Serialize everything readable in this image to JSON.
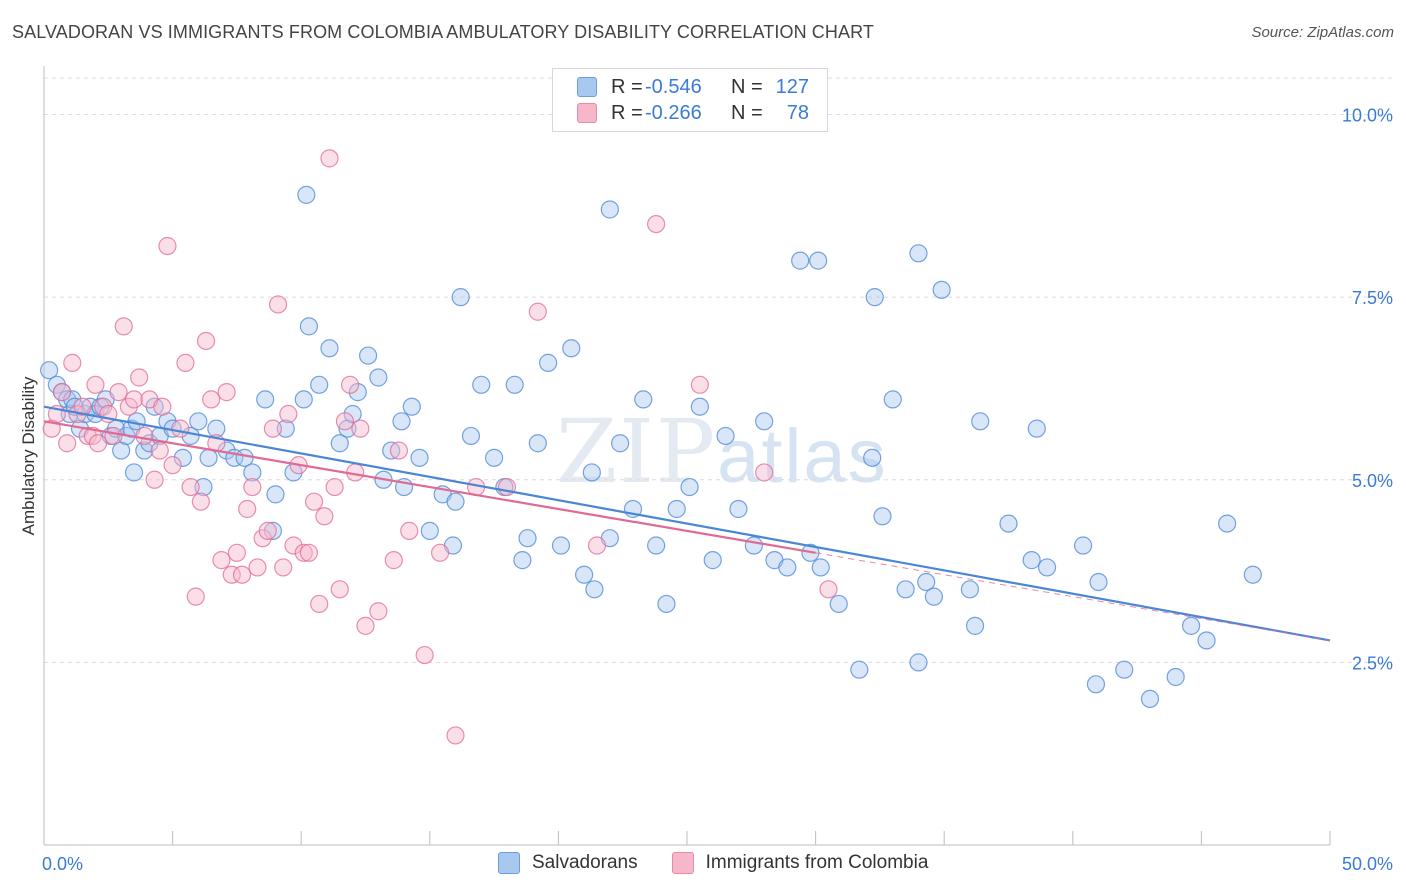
{
  "header": {
    "title": "SALVADORAN VS IMMIGRANTS FROM COLOMBIA AMBULATORY DISABILITY CORRELATION CHART",
    "source": "Source: ZipAtlas.com"
  },
  "watermark": {
    "part1": "ZIP",
    "part2": "atlas"
  },
  "legend": {
    "rows": [
      {
        "r_label": "R =",
        "r_value": "-0.546",
        "n_label": "N =",
        "n_value": "127",
        "color": "#a9c8f0"
      },
      {
        "r_label": "R =",
        "r_value": "-0.266",
        "n_label": "N =",
        "n_value": "78",
        "color": "#f6b7cb"
      }
    ]
  },
  "bottom_legend": {
    "items": [
      {
        "label": "Salvadorans",
        "color": "#a9c8f0"
      },
      {
        "label": "Immigrants from Colombia",
        "color": "#f6b7cb"
      }
    ]
  },
  "chart_data": {
    "type": "scatter",
    "title": "SALVADORAN VS IMMIGRANTS FROM COLOMBIA AMBULATORY DISABILITY CORRELATION CHART",
    "xlabel": "",
    "ylabel": "Ambulatory Disability",
    "xlim": [
      0,
      50
    ],
    "ylim": [
      0,
      10.5
    ],
    "x_tick_labels": [
      "0.0%",
      "50.0%"
    ],
    "y_ticks": [
      2.5,
      5.0,
      7.5,
      10.0
    ],
    "y_tick_labels": [
      "2.5%",
      "5.0%",
      "7.5%",
      "10.0%"
    ],
    "grid": true,
    "legend_position": "top-center",
    "series": [
      {
        "name": "Salvadorans",
        "color": "#4a86d6",
        "fill": "#a9c8f0",
        "trend": {
          "x": [
            0,
            50
          ],
          "y": [
            6.0,
            2.8
          ],
          "dashed_x": []
        },
        "points": [
          [
            0.2,
            6.5
          ],
          [
            0.5,
            6.3
          ],
          [
            0.7,
            6.2
          ],
          [
            0.9,
            6.1
          ],
          [
            1.0,
            5.9
          ],
          [
            1.1,
            6.1
          ],
          [
            1.2,
            6.0
          ],
          [
            1.4,
            5.7
          ],
          [
            1.6,
            5.9
          ],
          [
            1.8,
            6.0
          ],
          [
            2.0,
            5.9
          ],
          [
            2.2,
            6.0
          ],
          [
            2.4,
            6.1
          ],
          [
            2.6,
            5.6
          ],
          [
            2.8,
            5.7
          ],
          [
            3.0,
            5.4
          ],
          [
            3.2,
            5.6
          ],
          [
            3.4,
            5.7
          ],
          [
            3.6,
            5.8
          ],
          [
            3.9,
            5.4
          ],
          [
            4.1,
            5.5
          ],
          [
            4.3,
            6.0
          ],
          [
            4.5,
            5.6
          ],
          [
            4.8,
            5.8
          ],
          [
            5.0,
            5.7
          ],
          [
            5.4,
            5.3
          ],
          [
            5.7,
            5.6
          ],
          [
            6.0,
            5.8
          ],
          [
            6.2,
            4.9
          ],
          [
            6.4,
            5.3
          ],
          [
            6.7,
            5.7
          ],
          [
            7.1,
            5.4
          ],
          [
            7.4,
            5.3
          ],
          [
            7.8,
            5.3
          ],
          [
            8.1,
            5.1
          ],
          [
            8.6,
            6.1
          ],
          [
            8.9,
            4.3
          ],
          [
            9.4,
            5.7
          ],
          [
            9.7,
            5.1
          ],
          [
            10.1,
            6.1
          ],
          [
            10.3,
            7.1
          ],
          [
            10.7,
            6.3
          ],
          [
            11.1,
            6.8
          ],
          [
            11.5,
            5.5
          ],
          [
            11.8,
            5.7
          ],
          [
            12.2,
            6.2
          ],
          [
            12.6,
            6.7
          ],
          [
            13.0,
            6.4
          ],
          [
            13.2,
            5.0
          ],
          [
            13.5,
            5.4
          ],
          [
            13.9,
            5.8
          ],
          [
            14.3,
            6.0
          ],
          [
            14.6,
            5.3
          ],
          [
            15.0,
            4.3
          ],
          [
            15.5,
            4.8
          ],
          [
            15.9,
            4.1
          ],
          [
            16.2,
            7.5
          ],
          [
            16.6,
            5.6
          ],
          [
            17.0,
            6.3
          ],
          [
            17.5,
            5.3
          ],
          [
            17.9,
            4.9
          ],
          [
            18.3,
            6.3
          ],
          [
            18.8,
            4.2
          ],
          [
            19.2,
            5.5
          ],
          [
            19.6,
            6.6
          ],
          [
            20.1,
            4.1
          ],
          [
            20.5,
            6.8
          ],
          [
            21.0,
            3.7
          ],
          [
            21.4,
            3.5
          ],
          [
            22.0,
            4.2
          ],
          [
            22.4,
            5.5
          ],
          [
            22.9,
            4.6
          ],
          [
            23.3,
            6.1
          ],
          [
            23.8,
            4.1
          ],
          [
            24.2,
            3.3
          ],
          [
            24.6,
            4.6
          ],
          [
            25.1,
            4.9
          ],
          [
            25.5,
            6.0
          ],
          [
            26.0,
            3.9
          ],
          [
            26.5,
            5.6
          ],
          [
            27.0,
            4.6
          ],
          [
            27.6,
            4.1
          ],
          [
            28.0,
            5.8
          ],
          [
            28.4,
            3.9
          ],
          [
            28.9,
            3.8
          ],
          [
            29.4,
            8.0
          ],
          [
            29.8,
            4.0
          ],
          [
            30.2,
            3.8
          ],
          [
            30.9,
            3.3
          ],
          [
            31.7,
            2.4
          ],
          [
            32.2,
            5.3
          ],
          [
            32.6,
            4.5
          ],
          [
            33.0,
            6.1
          ],
          [
            33.5,
            3.5
          ],
          [
            34.0,
            2.5
          ],
          [
            34.3,
            3.6
          ],
          [
            34.6,
            3.4
          ],
          [
            36.4,
            5.8
          ],
          [
            38.4,
            3.9
          ],
          [
            38.6,
            5.7
          ],
          [
            40.4,
            4.1
          ],
          [
            40.9,
            2.2
          ],
          [
            43.0,
            2.0
          ],
          [
            44.0,
            2.3
          ],
          [
            44.6,
            3.0
          ],
          [
            45.2,
            2.8
          ],
          [
            47.0,
            3.7
          ],
          [
            34.9,
            7.6
          ],
          [
            32.3,
            7.5
          ],
          [
            30.1,
            8.0
          ],
          [
            10.2,
            8.9
          ],
          [
            36.2,
            3.0
          ],
          [
            22.0,
            8.7
          ],
          [
            34.0,
            8.1
          ],
          [
            36.0,
            3.5
          ],
          [
            37.5,
            4.4
          ],
          [
            39.0,
            3.8
          ],
          [
            42.0,
            2.4
          ],
          [
            41.0,
            3.6
          ],
          [
            46.0,
            4.4
          ],
          [
            16.0,
            4.7
          ],
          [
            18.6,
            3.9
          ],
          [
            21.3,
            5.1
          ],
          [
            14.0,
            4.9
          ],
          [
            12.0,
            5.9
          ],
          [
            9.0,
            4.8
          ],
          [
            3.5,
            5.1
          ]
        ]
      },
      {
        "name": "Immigrants from Colombia",
        "color": "#e06a94",
        "fill": "#f6b7cb",
        "trend": {
          "x": [
            0,
            30
          ],
          "y": [
            5.8,
            4.0
          ],
          "dashed_x": [
            30,
            50
          ]
        },
        "points": [
          [
            0.3,
            5.7
          ],
          [
            0.5,
            5.9
          ],
          [
            0.7,
            6.2
          ],
          [
            0.9,
            5.5
          ],
          [
            1.1,
            6.6
          ],
          [
            1.3,
            5.9
          ],
          [
            1.5,
            6.0
          ],
          [
            1.7,
            5.6
          ],
          [
            1.9,
            5.6
          ],
          [
            2.1,
            5.5
          ],
          [
            2.3,
            6.0
          ],
          [
            2.5,
            5.9
          ],
          [
            2.7,
            5.6
          ],
          [
            2.9,
            6.2
          ],
          [
            3.1,
            7.1
          ],
          [
            3.3,
            6.0
          ],
          [
            3.5,
            6.1
          ],
          [
            3.7,
            6.4
          ],
          [
            3.9,
            5.6
          ],
          [
            4.1,
            6.1
          ],
          [
            4.3,
            5.0
          ],
          [
            4.5,
            5.4
          ],
          [
            4.8,
            8.2
          ],
          [
            5.0,
            5.2
          ],
          [
            5.3,
            5.7
          ],
          [
            5.5,
            6.6
          ],
          [
            5.7,
            4.9
          ],
          [
            5.9,
            3.4
          ],
          [
            6.1,
            4.7
          ],
          [
            6.3,
            6.9
          ],
          [
            6.5,
            6.1
          ],
          [
            6.7,
            5.5
          ],
          [
            6.9,
            3.9
          ],
          [
            7.1,
            6.2
          ],
          [
            7.3,
            3.7
          ],
          [
            7.5,
            4.0
          ],
          [
            7.7,
            3.7
          ],
          [
            7.9,
            4.6
          ],
          [
            8.1,
            4.9
          ],
          [
            8.3,
            3.8
          ],
          [
            8.5,
            4.2
          ],
          [
            8.7,
            4.3
          ],
          [
            8.9,
            5.7
          ],
          [
            9.1,
            7.4
          ],
          [
            9.3,
            3.8
          ],
          [
            9.5,
            5.9
          ],
          [
            9.7,
            4.1
          ],
          [
            9.9,
            5.2
          ],
          [
            10.1,
            4.0
          ],
          [
            10.3,
            4.0
          ],
          [
            10.5,
            4.7
          ],
          [
            10.7,
            3.3
          ],
          [
            10.9,
            4.5
          ],
          [
            11.1,
            9.4
          ],
          [
            11.3,
            4.9
          ],
          [
            11.5,
            3.5
          ],
          [
            11.7,
            5.8
          ],
          [
            11.9,
            6.3
          ],
          [
            12.1,
            5.1
          ],
          [
            12.3,
            5.7
          ],
          [
            12.5,
            3.0
          ],
          [
            13.0,
            3.2
          ],
          [
            13.6,
            3.9
          ],
          [
            14.2,
            4.3
          ],
          [
            14.8,
            2.6
          ],
          [
            15.4,
            4.0
          ],
          [
            16.0,
            1.5
          ],
          [
            16.8,
            4.9
          ],
          [
            18.0,
            4.9
          ],
          [
            19.2,
            7.3
          ],
          [
            21.5,
            4.1
          ],
          [
            23.8,
            8.5
          ],
          [
            25.5,
            6.3
          ],
          [
            28.0,
            5.1
          ],
          [
            30.5,
            3.5
          ],
          [
            13.8,
            5.4
          ],
          [
            2.0,
            6.3
          ],
          [
            4.6,
            6.0
          ]
        ]
      }
    ]
  }
}
